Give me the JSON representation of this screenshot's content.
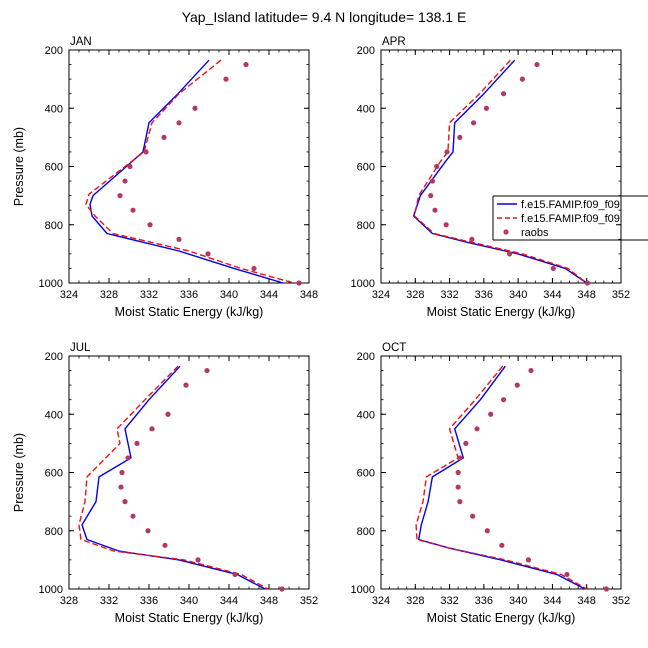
{
  "figure": {
    "title": "Yap_Island  latitude= 9.4 N longitude= 138.1 E"
  },
  "legend": {
    "entries": [
      {
        "label": "f.e15.FAMIP.f09_f09",
        "style": "solid",
        "color": "#0000ee"
      },
      {
        "label": "f.e15.FAMIP.f09_f09",
        "style": "dashed",
        "color": "#ee1111"
      },
      {
        "label": "raobs",
        "style": "marker",
        "color": "#b23a62"
      }
    ]
  },
  "chart_data": [
    {
      "type": "line",
      "panel": "JAN",
      "xlabel": "Moist Static Energy (kJ/kg)",
      "ylabel": "Pressure (mb)",
      "xlim": [
        324,
        348
      ],
      "ylim": [
        200,
        1000
      ],
      "y_inverted": true,
      "xticks": [
        "324",
        "328",
        "332",
        "336",
        "340",
        "344",
        "348"
      ],
      "yticks": [
        "200",
        "400",
        "600",
        "800",
        "1000"
      ],
      "series": [
        {
          "style": "solid",
          "color": "#0000ee",
          "x": [
            338.0,
            334.9,
            332.0,
            331.4,
            326.4,
            326.1,
            326.3,
            327.8,
            335.0,
            340.5,
            345.4
          ],
          "y": [
            235,
            350,
            450,
            550,
            700,
            730,
            770,
            830,
            890,
            950,
            1000
          ]
        },
        {
          "style": "dashed",
          "color": "#ee1111",
          "x": [
            339.2,
            335.0,
            332.3,
            331.5,
            326.0,
            325.7,
            326.6,
            328.4,
            336.0,
            341.2,
            346.5
          ],
          "y": [
            235,
            350,
            450,
            550,
            695,
            730,
            770,
            830,
            890,
            950,
            1000
          ]
        },
        {
          "style": "marker",
          "color": "#b23a62",
          "x": [
            341.7,
            339.7,
            336.6,
            335.0,
            333.5,
            331.7,
            330.1,
            329.6,
            329.1,
            330.4,
            332.1,
            335.0,
            337.9,
            342.5,
            347.0
          ],
          "y": [
            250,
            300,
            400,
            450,
            500,
            550,
            600,
            650,
            700,
            750,
            800,
            850,
            900,
            950,
            1000
          ]
        }
      ]
    },
    {
      "type": "line",
      "panel": "APR",
      "xlabel": "Moist Static Energy (kJ/kg)",
      "ylabel": "",
      "xlim": [
        324,
        352
      ],
      "ylim": [
        200,
        1000
      ],
      "y_inverted": true,
      "xticks": [
        "324",
        "328",
        "332",
        "336",
        "340",
        "344",
        "348",
        "352"
      ],
      "yticks": [
        "200",
        "400",
        "600",
        "800",
        "1000"
      ],
      "series": [
        {
          "style": "solid",
          "color": "#0000ee",
          "x": [
            339.6,
            336.0,
            332.6,
            332.4,
            331.6,
            328.6,
            327.8,
            330.0,
            334.0,
            340.0,
            345.5,
            348.0
          ],
          "y": [
            235,
            350,
            450,
            550,
            580,
            700,
            770,
            830,
            860,
            900,
            950,
            1000
          ]
        },
        {
          "style": "dashed",
          "color": "#ee1111",
          "x": [
            339.1,
            335.5,
            332.0,
            331.8,
            331.0,
            328.4,
            327.9,
            330.2,
            334.5,
            340.5,
            345.8,
            348.0
          ],
          "y": [
            235,
            350,
            450,
            550,
            580,
            700,
            770,
            830,
            860,
            900,
            950,
            1000
          ]
        },
        {
          "style": "marker",
          "color": "#b23a62",
          "x": [
            342.2,
            340.5,
            338.3,
            336.3,
            334.8,
            333.2,
            331.7,
            330.5,
            330.0,
            329.8,
            330.3,
            331.6,
            334.6,
            339.0,
            344.1,
            348.1
          ],
          "y": [
            250,
            300,
            350,
            400,
            450,
            500,
            550,
            600,
            650,
            700,
            750,
            800,
            850,
            900,
            950,
            1000
          ]
        }
      ]
    },
    {
      "type": "line",
      "panel": "JUL",
      "xlabel": "Moist Static Energy (kJ/kg)",
      "ylabel": "Pressure (mb)",
      "xlim": [
        328,
        352
      ],
      "ylim": [
        200,
        1000
      ],
      "y_inverted": true,
      "xticks": [
        "328",
        "332",
        "336",
        "340",
        "344",
        "348",
        "352"
      ],
      "yticks": [
        "200",
        "400",
        "600",
        "800",
        "1000"
      ],
      "series": [
        {
          "style": "solid",
          "color": "#0000ee",
          "x": [
            339.1,
            336.0,
            333.6,
            334.2,
            331.0,
            330.7,
            329.3,
            329.8,
            333.0,
            339.0,
            344.8,
            347.6
          ],
          "y": [
            235,
            350,
            450,
            550,
            615,
            700,
            780,
            830,
            870,
            900,
            950,
            1000
          ]
        },
        {
          "style": "dashed",
          "color": "#ee1111",
          "x": [
            338.9,
            335.6,
            332.8,
            333.1,
            329.8,
            329.6,
            329.0,
            329.2,
            332.5,
            339.5,
            345.2,
            347.9
          ],
          "y": [
            235,
            350,
            450,
            500,
            615,
            700,
            780,
            830,
            870,
            900,
            950,
            1000
          ]
        },
        {
          "style": "marker",
          "color": "#b23a62",
          "x": [
            341.8,
            339.7,
            337.9,
            336.3,
            334.8,
            333.9,
            333.3,
            333.2,
            333.6,
            334.4,
            335.9,
            337.6,
            340.9,
            344.6,
            349.3
          ],
          "y": [
            250,
            300,
            400,
            450,
            500,
            550,
            600,
            650,
            700,
            750,
            800,
            850,
            900,
            950,
            1000
          ]
        }
      ]
    },
    {
      "type": "line",
      "panel": "OCT",
      "xlabel": "Moist Static Energy (kJ/kg)",
      "ylabel": "",
      "xlim": [
        324,
        352
      ],
      "ylim": [
        200,
        1000
      ],
      "y_inverted": true,
      "xticks": [
        "324",
        "328",
        "332",
        "336",
        "340",
        "344",
        "348",
        "352"
      ],
      "yticks": [
        "200",
        "400",
        "600",
        "800",
        "1000"
      ],
      "series": [
        {
          "style": "solid",
          "color": "#0000ee",
          "x": [
            338.5,
            335.6,
            332.6,
            333.6,
            330.0,
            329.5,
            328.7,
            328.4,
            332.0,
            338.0,
            344.5,
            347.8
          ],
          "y": [
            235,
            350,
            450,
            550,
            615,
            700,
            780,
            830,
            860,
            900,
            950,
            1000
          ]
        },
        {
          "style": "dashed",
          "color": "#ee1111",
          "x": [
            338.2,
            335.0,
            332.0,
            333.0,
            329.3,
            328.9,
            328.1,
            328.2,
            332.0,
            338.5,
            345.0,
            348.0
          ],
          "y": [
            235,
            350,
            450,
            550,
            615,
            700,
            780,
            830,
            860,
            900,
            950,
            1000
          ]
        },
        {
          "style": "marker",
          "color": "#b23a62",
          "x": [
            341.5,
            339.9,
            338.3,
            336.8,
            335.2,
            333.9,
            333.2,
            333.0,
            333.0,
            333.2,
            334.7,
            336.4,
            338.1,
            341.2,
            345.7,
            350.3
          ],
          "y": [
            250,
            300,
            350,
            400,
            450,
            500,
            550,
            600,
            650,
            700,
            750,
            800,
            850,
            900,
            950,
            1000
          ]
        }
      ]
    }
  ]
}
